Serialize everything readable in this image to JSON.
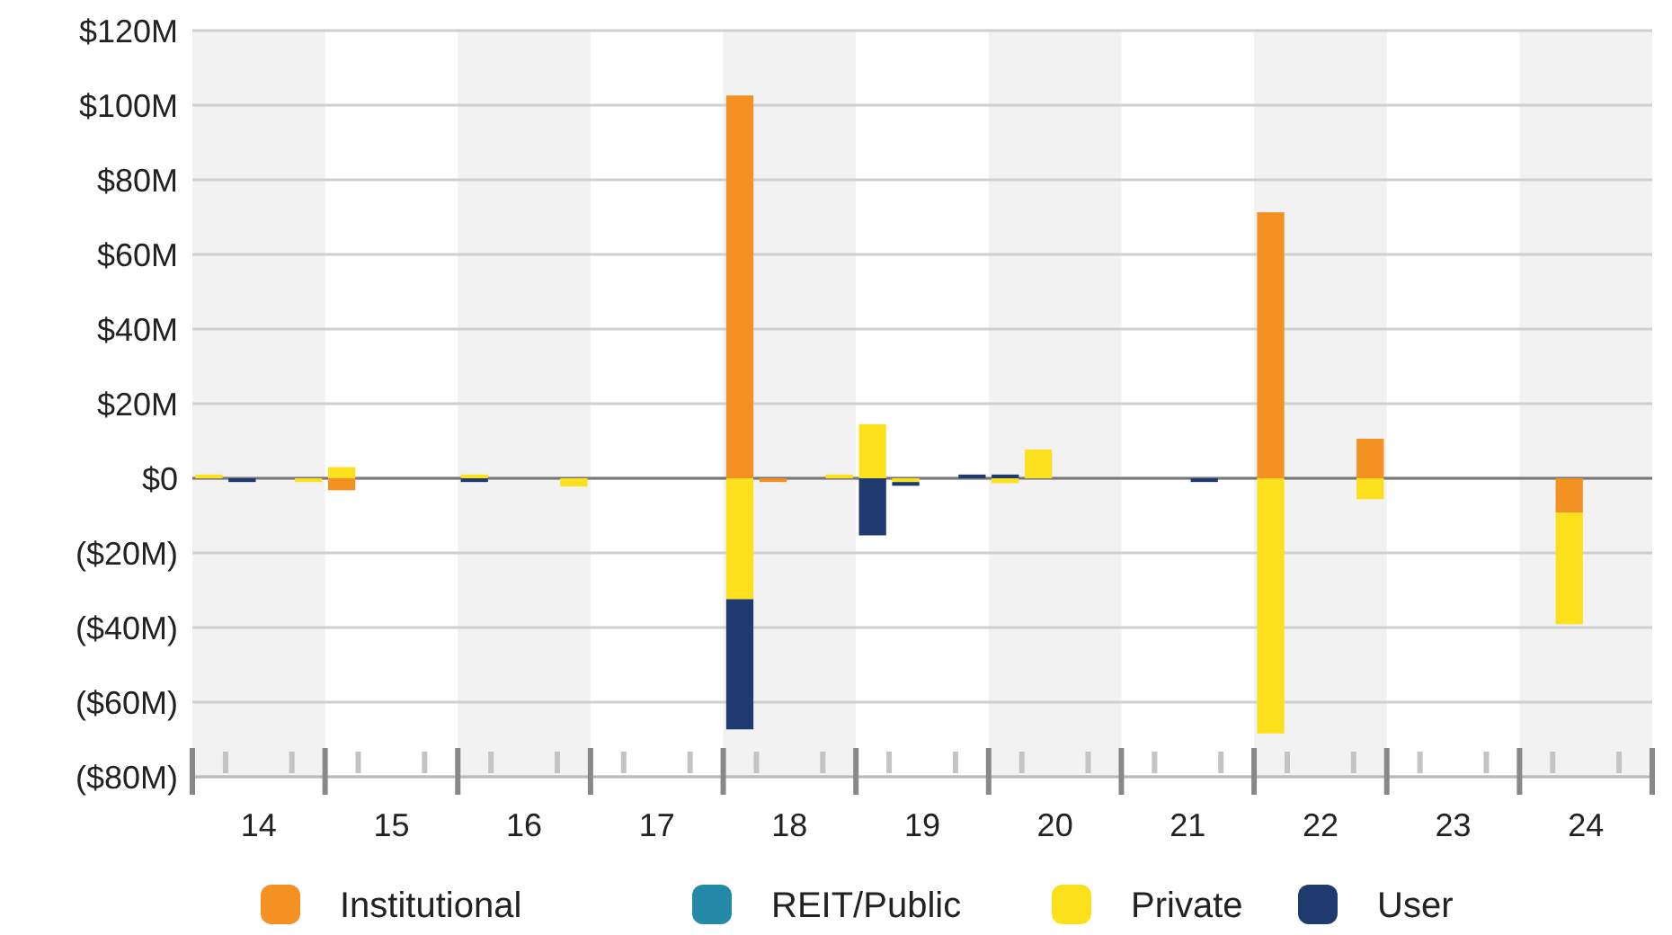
{
  "chart_data": {
    "type": "bar",
    "stacked": true,
    "x": [
      14.125,
      14.375,
      14.625,
      14.875,
      15.125,
      15.375,
      15.625,
      15.875,
      16.125,
      16.375,
      16.625,
      16.875,
      17.125,
      17.375,
      17.625,
      17.875,
      18.125,
      18.375,
      18.625,
      18.875,
      19.125,
      19.375,
      19.625,
      19.875,
      20.125,
      20.375,
      20.625,
      20.875,
      21.125,
      21.375,
      21.625,
      21.875,
      22.125,
      22.375,
      22.625,
      22.875,
      23.125,
      23.375,
      23.625,
      23.875,
      24.125,
      24.375,
      24.625,
      24.875
    ],
    "series": [
      {
        "name": "Institutional",
        "color": "#f39122",
        "values": [
          0,
          0,
          0,
          0,
          -3.2,
          0,
          0,
          0,
          0,
          0,
          0,
          0,
          0,
          0,
          0,
          0,
          102.6,
          -1,
          0,
          0,
          0,
          0,
          0,
          0,
          0,
          0,
          0,
          0,
          0,
          0,
          0,
          0,
          71.3,
          0,
          0,
          10.6,
          0,
          0,
          0,
          0,
          0,
          -9.2,
          0,
          0
        ]
      },
      {
        "name": "REIT/Public",
        "color": "#2489a7",
        "values": [
          0,
          0,
          0,
          0,
          0,
          0,
          0,
          0,
          0,
          0,
          0,
          0,
          0,
          0,
          0,
          0,
          0,
          0,
          0,
          0,
          0,
          0,
          0,
          0,
          0,
          0,
          0,
          0,
          0,
          0,
          0,
          0,
          0,
          0,
          0,
          0,
          0,
          0,
          0,
          0,
          0,
          0,
          0,
          0
        ]
      },
      {
        "name": "Private",
        "color": "#fde01c",
        "values": [
          1,
          0,
          0,
          -1,
          3,
          0,
          0,
          0,
          1,
          0,
          0,
          -2.2,
          0,
          0,
          0,
          0,
          -32.4,
          0,
          0,
          1,
          14.5,
          -1,
          0,
          0,
          -1.3,
          7.7,
          0,
          0,
          0,
          0,
          0,
          0,
          -68.4,
          0,
          0,
          -5.6,
          0,
          0,
          0,
          0,
          0,
          -29.9,
          0,
          0
        ]
      },
      {
        "name": "User",
        "color": "#1f3a6e",
        "values": [
          0,
          -1,
          0,
          0,
          0,
          0,
          0,
          0,
          -1,
          0,
          0,
          0,
          0,
          0,
          0,
          0,
          -34.9,
          0,
          0,
          0,
          -15.3,
          -1,
          0,
          1,
          1,
          0,
          0,
          0,
          0,
          0,
          -1,
          0,
          0,
          0,
          0,
          0,
          0,
          0,
          0,
          0,
          0,
          0,
          0,
          0
        ]
      }
    ],
    "xlim": [
      14,
      25
    ],
    "xticks": [
      {
        "value": 14.25,
        "label": null
      },
      {
        "value": 14.5,
        "label": "14"
      },
      {
        "value": 14.75,
        "label": null
      },
      {
        "value": 15.25,
        "label": null
      },
      {
        "value": 15.5,
        "label": "15"
      },
      {
        "value": 15.75,
        "label": null
      },
      {
        "value": 16.25,
        "label": null
      },
      {
        "value": 16.5,
        "label": "16"
      },
      {
        "value": 16.75,
        "label": null
      },
      {
        "value": 17.25,
        "label": null
      },
      {
        "value": 17.5,
        "label": "17"
      },
      {
        "value": 17.75,
        "label": null
      },
      {
        "value": 18.25,
        "label": null
      },
      {
        "value": 18.5,
        "label": "18"
      },
      {
        "value": 18.75,
        "label": null
      },
      {
        "value": 19.25,
        "label": null
      },
      {
        "value": 19.5,
        "label": "19"
      },
      {
        "value": 19.75,
        "label": null
      },
      {
        "value": 20.25,
        "label": null
      },
      {
        "value": 20.5,
        "label": "20"
      },
      {
        "value": 20.75,
        "label": null
      },
      {
        "value": 21.25,
        "label": null
      },
      {
        "value": 21.5,
        "label": "21"
      },
      {
        "value": 21.75,
        "label": null
      },
      {
        "value": 22.25,
        "label": null
      },
      {
        "value": 22.5,
        "label": "22"
      },
      {
        "value": 22.75,
        "label": null
      },
      {
        "value": 23.25,
        "label": null
      },
      {
        "value": 23.5,
        "label": "23"
      },
      {
        "value": 23.75,
        "label": null
      },
      {
        "value": 24.25,
        "label": null
      },
      {
        "value": 24.5,
        "label": "24"
      },
      {
        "value": 24.75,
        "label": null
      }
    ],
    "ylim": [
      -80,
      120
    ],
    "yticks": [
      {
        "value": -80,
        "label": "($80M)"
      },
      {
        "value": -60,
        "label": "($60M)"
      },
      {
        "value": -40,
        "label": "($40M)"
      },
      {
        "value": -20,
        "label": "($20M)"
      },
      {
        "value": 0,
        "label": "$0"
      },
      {
        "value": 20,
        "label": "$20M"
      },
      {
        "value": 40,
        "label": "$40M"
      },
      {
        "value": 60,
        "label": "$60M"
      },
      {
        "value": 80,
        "label": "$80M"
      },
      {
        "value": 100,
        "label": "$100M"
      },
      {
        "value": 120,
        "label": "$120M"
      }
    ],
    "grid": "y",
    "bands": [
      {
        "axis": "x",
        "from": 14,
        "to": 15,
        "color": "#f2f2f2"
      },
      {
        "axis": "x",
        "from": 16,
        "to": 17,
        "color": "#f2f2f2"
      },
      {
        "axis": "x",
        "from": 18,
        "to": 19,
        "color": "#f2f2f2"
      },
      {
        "axis": "x",
        "from": 20,
        "to": 21,
        "color": "#f2f2f2"
      },
      {
        "axis": "x",
        "from": 22,
        "to": 23,
        "color": "#f2f2f2"
      },
      {
        "axis": "x",
        "from": 24,
        "to": 25,
        "color": "#f2f2f2"
      }
    ],
    "legend": "bottom"
  }
}
